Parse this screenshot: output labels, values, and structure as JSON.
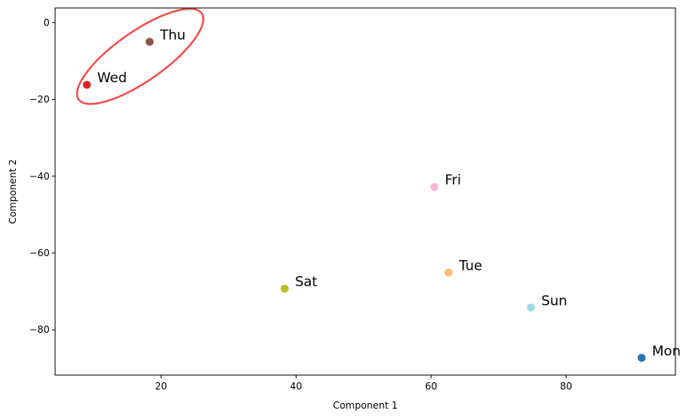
{
  "chart_data": {
    "type": "scatter",
    "title": "",
    "xlabel": "Component 1",
    "ylabel": "Component 2",
    "xlim": [
      4.3,
      96.2
    ],
    "ylim": [
      -91.8,
      3.8
    ],
    "xticks": [
      20,
      40,
      60,
      80
    ],
    "yticks": [
      0,
      -20,
      -40,
      -60,
      -80
    ],
    "grid": false,
    "legend": "none",
    "points": [
      {
        "label": "Mon",
        "x": 91.2,
        "y": -87.3,
        "color": "#1f77b4"
      },
      {
        "label": "Tue",
        "x": 62.6,
        "y": -65.1,
        "color": "#ffbb78"
      },
      {
        "label": "Wed",
        "x": 9.0,
        "y": -16.2,
        "color": "#d62728"
      },
      {
        "label": "Thu",
        "x": 18.3,
        "y": -5.0,
        "color": "#8c564b"
      },
      {
        "label": "Fri",
        "x": 60.5,
        "y": -42.8,
        "color": "#f7b6d2"
      },
      {
        "label": "Sat",
        "x": 38.3,
        "y": -69.3,
        "color": "#bcbd22"
      },
      {
        "label": "Sun",
        "x": 74.8,
        "y": -74.2,
        "color": "#9edae5"
      }
    ],
    "highlight": {
      "shape": "ellipse",
      "color": "#f05252",
      "center": [
        16.9,
        -8.8
      ],
      "semi_axes": [
        10.2,
        4.8
      ],
      "angle_deg": 35
    }
  }
}
